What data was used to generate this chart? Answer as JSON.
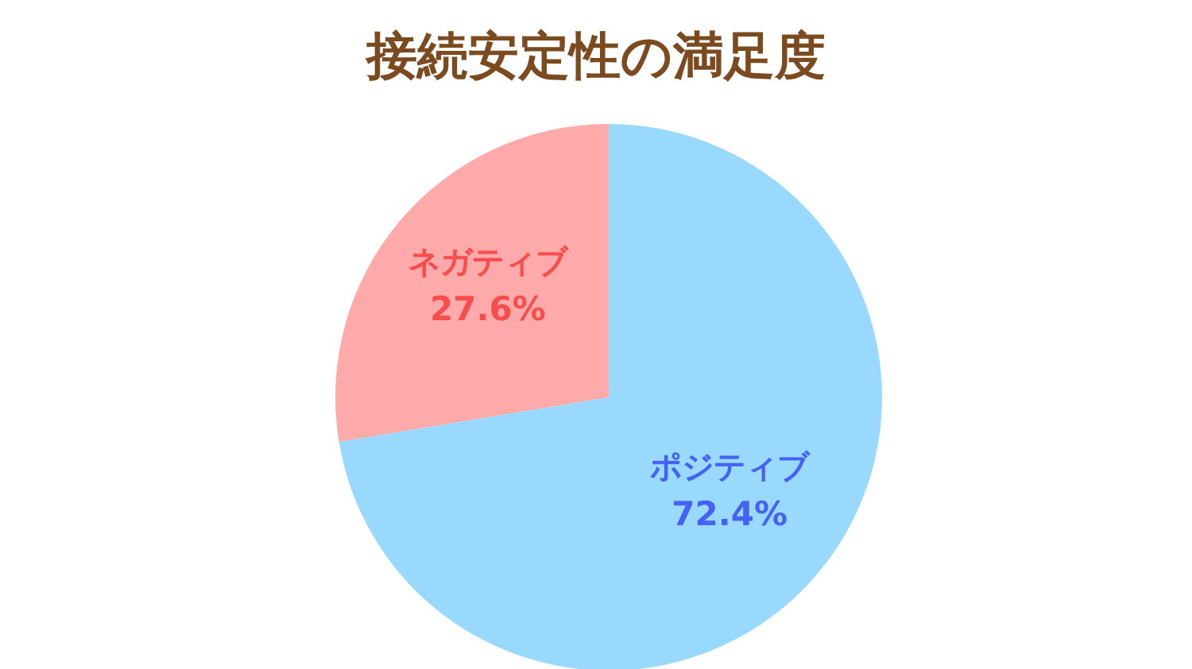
{
  "chart_data": {
    "type": "pie",
    "title": "接続安定性の満足度",
    "categories": [
      "ポジティブ",
      "ネガティブ"
    ],
    "values": [
      72.4,
      27.6
    ],
    "colors": [
      "#99d9fd",
      "#ffaaaa"
    ],
    "value_labels": [
      "72.4%",
      "27.6%"
    ],
    "legend": false
  }
}
